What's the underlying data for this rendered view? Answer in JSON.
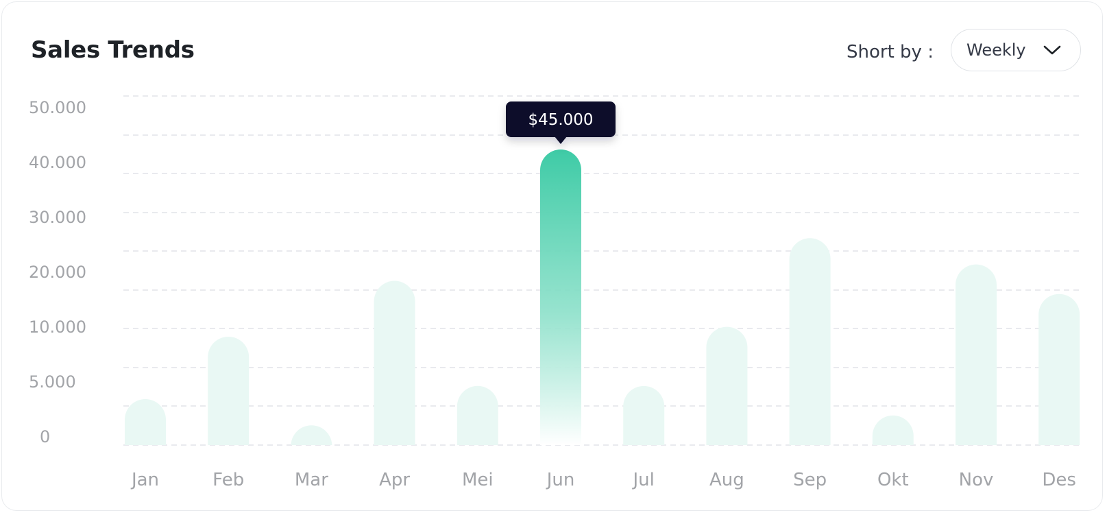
{
  "header": {
    "title": "Sales Trends",
    "sort_label": "Short by :",
    "sort_value": "Weekly"
  },
  "icons": {
    "dropdown": "chevron-down-icon"
  },
  "colors": {
    "accent": "#3ecba6",
    "bar_muted": "#e9f8f4",
    "tooltip_bg": "#0a0f2c",
    "grid": "#e2e4e8",
    "axis_text": "#a2a4a8"
  },
  "chart_data": {
    "type": "bar",
    "title": "Sales Trends",
    "categories": [
      "Jan",
      "Feb",
      "Mar",
      "Apr",
      "Mei",
      "Jun",
      "Jul",
      "Aug",
      "Sep",
      "Okt",
      "Nov",
      "Des"
    ],
    "values": [
      7000,
      16500,
      3000,
      25000,
      9000,
      45000,
      9000,
      18000,
      31500,
      4500,
      27500,
      23000
    ],
    "y_ticks": [
      0,
      5000,
      10000,
      20000,
      30000,
      40000,
      50000
    ],
    "y_tick_labels": [
      "0",
      "5.000",
      "10.000",
      "20.000",
      "30.000",
      "40.000",
      "50.000"
    ],
    "highlighted": "Jun",
    "tooltip": "$45.000",
    "grid": true,
    "legend": "none"
  }
}
